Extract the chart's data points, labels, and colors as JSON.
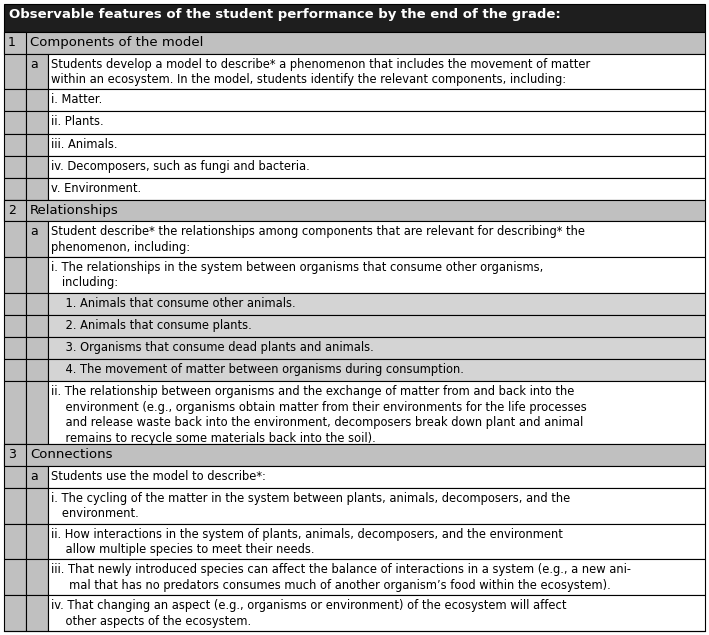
{
  "title": "Observable features of the student performance by the end of the grade:",
  "title_bg": "#1e1e1e",
  "section_bg": "#c0c0c0",
  "sub_indent_bg": "#d4d4d4",
  "white": "#ffffff",
  "border_color": "#000000",
  "sections": [
    {
      "number": "1",
      "heading": "Components of the model",
      "letter": "a",
      "letter_text_lines": [
        "Students develop a model to describe* a phenomenon that includes the movement of matter",
        "within an ecosystem. In the model, students identify the relevant components, including:"
      ],
      "sub_rows": [
        {
          "lines": [
            "i. Matter."
          ],
          "indent": false
        },
        {
          "lines": [
            "ii. Plants."
          ],
          "indent": false
        },
        {
          "lines": [
            "iii. Animals."
          ],
          "indent": false
        },
        {
          "lines": [
            "iv. Decomposers, such as fungi and bacteria."
          ],
          "indent": false
        },
        {
          "lines": [
            "v. Environment."
          ],
          "indent": false
        }
      ]
    },
    {
      "number": "2",
      "heading": "Relationships",
      "letter": "a",
      "letter_text_lines": [
        "Student describe* the relationships among components that are relevant for describing* the",
        "phenomenon, including:"
      ],
      "sub_rows": [
        {
          "lines": [
            "i. The relationships in the system between organisms that consume other organisms,",
            "   including:"
          ],
          "indent": false
        },
        {
          "lines": [
            "    1. Animals that consume other animals."
          ],
          "indent": true
        },
        {
          "lines": [
            "    2. Animals that consume plants."
          ],
          "indent": true
        },
        {
          "lines": [
            "    3. Organisms that consume dead plants and animals."
          ],
          "indent": true
        },
        {
          "lines": [
            "    4. The movement of matter between organisms during consumption."
          ],
          "indent": true
        },
        {
          "lines": [
            "ii. The relationship between organisms and the exchange of matter from and back into the",
            "    environment (e.g., organisms obtain matter from their environments for the life processes",
            "    and release waste back into the environment, decomposers break down plant and animal",
            "    remains to recycle some materials back into the soil)."
          ],
          "indent": false
        }
      ]
    },
    {
      "number": "3",
      "heading": "Connections",
      "letter": "a",
      "letter_text_lines": [
        "Students use the model to describe*:"
      ],
      "sub_rows": [
        {
          "lines": [
            "i. The cycling of the matter in the system between plants, animals, decomposers, and the",
            "   environment."
          ],
          "indent": false
        },
        {
          "lines": [
            "ii. How interactions in the system of plants, animals, decomposers, and the environment",
            "    allow multiple species to meet their needs."
          ],
          "indent": false
        },
        {
          "lines": [
            "iii. That newly introduced species can affect the balance of interactions in a system (e.g., a new ani-",
            "     mal that has no predators consumes much of another organism’s food within the ecosystem)."
          ],
          "indent": false
        },
        {
          "lines": [
            "iv. That changing an aspect (e.g., organisms or environment) of the ecosystem will affect",
            "    other aspects of the ecosystem."
          ],
          "indent": false
        }
      ]
    }
  ]
}
